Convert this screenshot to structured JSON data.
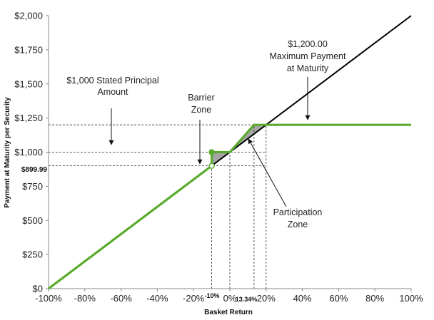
{
  "chart_data": {
    "type": "line",
    "title": "",
    "xlabel": "Basket Return",
    "ylabel": "Payment at Maturity per Security",
    "xlim": [
      -100,
      100
    ],
    "ylim": [
      0,
      2000
    ],
    "x_ticks": [
      -100,
      -80,
      -60,
      -40,
      -20,
      0,
      20,
      40,
      60,
      80,
      100
    ],
    "x_tick_labels": [
      "-100%",
      "-80%",
      "-60%",
      "-40%",
      "-20%",
      "0%",
      "20%",
      "40%",
      "60%",
      "80%",
      "100%"
    ],
    "y_ticks": [
      0,
      250,
      500,
      750,
      1000,
      1250,
      1500,
      1750,
      2000
    ],
    "y_tick_labels": [
      "$0",
      "$250",
      "$500",
      "$750",
      "$1,000",
      "$1,250",
      "$1,500",
      "$1,750",
      "$2,000"
    ],
    "grid": false,
    "colors": {
      "security": "#5aaa2e",
      "basket": "#000000",
      "zone_fill": "#a6a6a6"
    },
    "series": [
      {
        "key": "security",
        "points": [
          [
            -100,
            0
          ],
          [
            -10,
            900
          ],
          [
            -10,
            1000
          ],
          [
            0,
            1000
          ],
          [
            13.34,
            1200
          ],
          [
            100,
            1200
          ]
        ]
      },
      {
        "key": "basket",
        "points": [
          [
            -100,
            0
          ],
          [
            100,
            2000
          ]
        ]
      }
    ],
    "marked_points": [
      {
        "x": -10,
        "y": 1000,
        "style": "filled"
      },
      {
        "x": -10,
        "y": 900,
        "style": "open"
      }
    ],
    "shaded_zones": [
      {
        "name": "barrier",
        "points": [
          [
            -10,
            900
          ],
          [
            -10,
            1000
          ],
          [
            0,
            1000
          ]
        ]
      },
      {
        "name": "participation",
        "points": [
          [
            0,
            1000
          ],
          [
            13.34,
            1200
          ],
          [
            20,
            1200
          ]
        ]
      }
    ],
    "reference_lines": {
      "horizontal_y": [
        900,
        1000,
        1200
      ],
      "vertical_x": [
        -10,
        0,
        13.34,
        20
      ]
    },
    "annotations": {
      "stated_principal": [
        "$1,000 Stated Principal",
        "Amount"
      ],
      "barrier_zone": [
        "Barrier",
        "Zone"
      ],
      "max_payment": [
        "$1,200.00",
        "Maximum Payment",
        "at Maturity"
      ],
      "participation_zone": [
        "Participation",
        "Zone"
      ],
      "y_marker_label": "$899.99",
      "x_marker_neg10": "-10%",
      "x_marker_1334": "13.34%"
    }
  }
}
